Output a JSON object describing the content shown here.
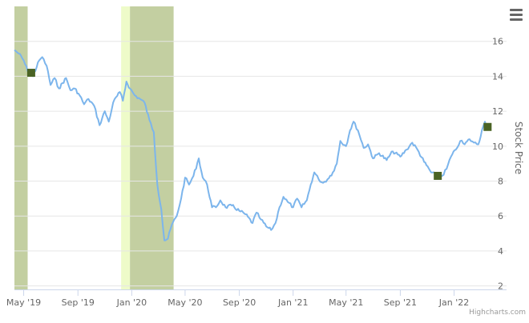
{
  "chart_data": {
    "type": "line",
    "title": "",
    "xlabel": "",
    "ylabel": "Stock Price",
    "ylim": [
      1.8,
      18
    ],
    "xlim": [
      "2019-04-10",
      "2022-04-30"
    ],
    "x_ticks": [
      {
        "date": "2019-05-01",
        "label": "May '19"
      },
      {
        "date": "2019-09-01",
        "label": "Sep '19"
      },
      {
        "date": "2020-01-01",
        "label": "Jan '20"
      },
      {
        "date": "2020-05-01",
        "label": "May '20"
      },
      {
        "date": "2020-09-01",
        "label": "Sep '20"
      },
      {
        "date": "2021-01-01",
        "label": "Jan '21"
      },
      {
        "date": "2021-05-01",
        "label": "May '21"
      },
      {
        "date": "2021-09-01",
        "label": "Sep '21"
      },
      {
        "date": "2022-01-01",
        "label": "Jan '22"
      }
    ],
    "y_ticks": [
      2,
      4,
      6,
      8,
      10,
      12,
      14,
      16
    ],
    "grid": true,
    "bands": [
      {
        "from": "2019-04-10",
        "to": "2019-05-10",
        "color": "#c3cfa1"
      },
      {
        "from": "2019-12-08",
        "to": "2019-12-28",
        "color": "#eefbc9"
      },
      {
        "from": "2019-12-28",
        "to": "2020-04-05",
        "color": "#c3cfa1"
      }
    ],
    "series": [
      {
        "color": "#7cb5ec",
        "points": [
          [
            "2019-04-10",
            15.5
          ],
          [
            "2019-04-20",
            15.3
          ],
          [
            "2019-05-01",
            14.9
          ],
          [
            "2019-05-10",
            14.3
          ],
          [
            "2019-05-22",
            14.0
          ],
          [
            "2019-06-05",
            14.9
          ],
          [
            "2019-06-12",
            15.1
          ],
          [
            "2019-06-22",
            14.6
          ],
          [
            "2019-07-01",
            13.5
          ],
          [
            "2019-07-10",
            13.9
          ],
          [
            "2019-07-20",
            13.3
          ],
          [
            "2019-08-05",
            13.9
          ],
          [
            "2019-08-15",
            13.2
          ],
          [
            "2019-08-25",
            13.3
          ],
          [
            "2019-09-05",
            12.9
          ],
          [
            "2019-09-15",
            12.4
          ],
          [
            "2019-09-25",
            12.7
          ],
          [
            "2019-10-08",
            12.3
          ],
          [
            "2019-10-20",
            11.2
          ],
          [
            "2019-11-01",
            12.0
          ],
          [
            "2019-11-10",
            11.4
          ],
          [
            "2019-11-20",
            12.5
          ],
          [
            "2019-12-05",
            13.1
          ],
          [
            "2019-12-12",
            12.6
          ],
          [
            "2019-12-20",
            13.7
          ],
          [
            "2019-12-28",
            13.3
          ],
          [
            "2020-01-08",
            12.9
          ],
          [
            "2020-01-20",
            12.7
          ],
          [
            "2020-01-30",
            12.5
          ],
          [
            "2020-02-10",
            11.5
          ],
          [
            "2020-02-20",
            10.8
          ],
          [
            "2020-02-28",
            7.8
          ],
          [
            "2020-03-08",
            6.4
          ],
          [
            "2020-03-15",
            4.6
          ],
          [
            "2020-03-23",
            4.7
          ],
          [
            "2020-04-01",
            5.5
          ],
          [
            "2020-04-12",
            6.0
          ],
          [
            "2020-04-22",
            7.0
          ],
          [
            "2020-05-01",
            8.2
          ],
          [
            "2020-05-10",
            7.8
          ],
          [
            "2020-05-20",
            8.3
          ],
          [
            "2020-06-01",
            9.3
          ],
          [
            "2020-06-10",
            8.2
          ],
          [
            "2020-06-20",
            7.8
          ],
          [
            "2020-07-01",
            6.5
          ],
          [
            "2020-07-10",
            6.5
          ],
          [
            "2020-07-20",
            6.9
          ],
          [
            "2020-08-01",
            6.5
          ],
          [
            "2020-08-15",
            6.6
          ],
          [
            "2020-09-01",
            6.3
          ],
          [
            "2020-09-15",
            6.1
          ],
          [
            "2020-10-01",
            5.6
          ],
          [
            "2020-10-10",
            6.2
          ],
          [
            "2020-10-20",
            5.8
          ],
          [
            "2020-11-01",
            5.4
          ],
          [
            "2020-11-12",
            5.2
          ],
          [
            "2020-11-22",
            5.6
          ],
          [
            "2020-12-01",
            6.5
          ],
          [
            "2020-12-10",
            7.1
          ],
          [
            "2020-12-20",
            6.8
          ],
          [
            "2021-01-01",
            6.5
          ],
          [
            "2021-01-10",
            7.0
          ],
          [
            "2021-01-20",
            6.5
          ],
          [
            "2021-02-01",
            6.9
          ],
          [
            "2021-02-10",
            7.8
          ],
          [
            "2021-02-18",
            8.5
          ],
          [
            "2021-02-28",
            8.1
          ],
          [
            "2021-03-10",
            7.9
          ],
          [
            "2021-03-20",
            8.1
          ],
          [
            "2021-04-01",
            8.5
          ],
          [
            "2021-04-10",
            9.0
          ],
          [
            "2021-04-18",
            10.3
          ],
          [
            "2021-05-01",
            10.0
          ],
          [
            "2021-05-10",
            10.9
          ],
          [
            "2021-05-18",
            11.4
          ],
          [
            "2021-05-28",
            10.9
          ],
          [
            "2021-06-10",
            9.9
          ],
          [
            "2021-06-20",
            10.1
          ],
          [
            "2021-07-01",
            9.3
          ],
          [
            "2021-07-15",
            9.6
          ],
          [
            "2021-08-01",
            9.2
          ],
          [
            "2021-08-15",
            9.7
          ],
          [
            "2021-09-01",
            9.4
          ],
          [
            "2021-09-15",
            9.8
          ],
          [
            "2021-09-28",
            10.2
          ],
          [
            "2021-10-10",
            9.8
          ],
          [
            "2021-10-25",
            9.1
          ],
          [
            "2021-11-10",
            8.5
          ],
          [
            "2021-11-25",
            8.3
          ],
          [
            "2021-12-05",
            8.3
          ],
          [
            "2021-12-15",
            8.7
          ],
          [
            "2021-12-25",
            9.4
          ],
          [
            "2022-01-05",
            9.8
          ],
          [
            "2022-01-15",
            10.3
          ],
          [
            "2022-01-25",
            10.1
          ],
          [
            "2022-02-05",
            10.4
          ],
          [
            "2022-02-15",
            10.2
          ],
          [
            "2022-02-25",
            10.1
          ],
          [
            "2022-03-05",
            10.9
          ],
          [
            "2022-03-12",
            11.4
          ],
          [
            "2022-03-18",
            11.1
          ]
        ]
      }
    ],
    "markers": [
      {
        "date": "2019-05-18",
        "value": 14.2,
        "color": "#4a6324"
      },
      {
        "date": "2021-11-25",
        "value": 8.3,
        "color": "#4a6324"
      },
      {
        "date": "2022-03-18",
        "value": 11.1,
        "color": "#4a6324"
      }
    ]
  },
  "credits": "Highcharts.com",
  "menu_icon": "hamburger-menu-icon",
  "colors": {
    "line": "#7cb5ec",
    "grid": "#e6e6e6",
    "axis_text": "#666666",
    "band_dark": "#c3cfa1",
    "band_light": "#eefbc9",
    "marker": "#4a6324"
  }
}
